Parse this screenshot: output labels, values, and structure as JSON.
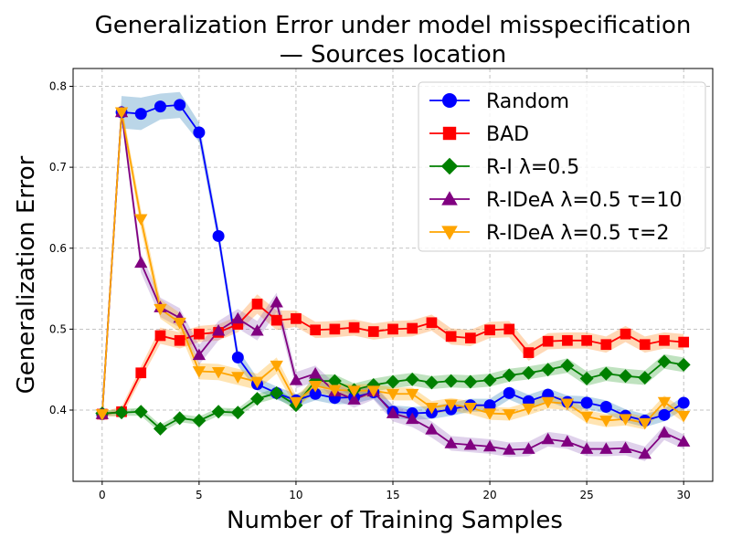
{
  "chart_data": {
    "type": "line",
    "title_line1": "Generalization Error under model misspecification",
    "title_line2": "— Sources location",
    "xlabel": "Number of Training Samples",
    "ylabel": "Generalization Error",
    "xlim": [
      -1.5,
      31.5
    ],
    "ylim": [
      0.312,
      0.822
    ],
    "x_ticks": [
      0,
      5,
      10,
      15,
      20,
      25,
      30
    ],
    "y_ticks": [
      0.4,
      0.5,
      0.6,
      0.7,
      0.8
    ],
    "x_tick_labels": [
      "0",
      "5",
      "10",
      "15",
      "20",
      "25",
      "30"
    ],
    "y_tick_labels": [
      "0.4",
      "0.5",
      "0.6",
      "0.7",
      "0.8"
    ],
    "grid": true,
    "legend_position": "top-right",
    "x": [
      0,
      1,
      2,
      3,
      4,
      5,
      6,
      7,
      8,
      9,
      10,
      11,
      12,
      13,
      14,
      15,
      16,
      17,
      18,
      19,
      20,
      21,
      22,
      23,
      24,
      25,
      26,
      27,
      28,
      29,
      30
    ],
    "series": [
      {
        "name": "Random",
        "color": "#0000ff",
        "band_color": "#1f77b4",
        "marker": "circle",
        "values": [
          0.395,
          0.768,
          0.766,
          0.775,
          0.777,
          0.743,
          0.615,
          0.465,
          0.432,
          0.421,
          0.412,
          0.42,
          0.415,
          0.416,
          0.422,
          0.398,
          0.396,
          0.397,
          0.401,
          0.406,
          0.406,
          0.421,
          0.411,
          0.419,
          0.41,
          0.409,
          0.404,
          0.393,
          0.387,
          0.394,
          0.409
        ],
        "band": [
          0.003,
          0.02,
          0.02,
          0.016,
          0.016,
          0.012,
          0.01,
          0.01,
          0.008,
          0.008,
          0.008,
          0.008,
          0.008,
          0.008,
          0.008,
          0.008,
          0.008,
          0.008,
          0.008,
          0.008,
          0.008,
          0.008,
          0.008,
          0.008,
          0.008,
          0.008,
          0.008,
          0.008,
          0.008,
          0.008,
          0.008
        ]
      },
      {
        "name": "BAD",
        "color": "#ff0000",
        "band_color": "#ff7f0e",
        "marker": "square",
        "values": [
          0.395,
          0.398,
          0.446,
          0.492,
          0.486,
          0.494,
          0.496,
          0.506,
          0.531,
          0.511,
          0.513,
          0.499,
          0.5,
          0.502,
          0.497,
          0.5,
          0.501,
          0.508,
          0.491,
          0.489,
          0.499,
          0.5,
          0.471,
          0.485,
          0.486,
          0.486,
          0.481,
          0.494,
          0.481,
          0.486,
          0.484
        ],
        "band": [
          0.003,
          0.006,
          0.008,
          0.01,
          0.01,
          0.01,
          0.01,
          0.01,
          0.012,
          0.012,
          0.01,
          0.01,
          0.01,
          0.01,
          0.01,
          0.01,
          0.01,
          0.01,
          0.01,
          0.01,
          0.01,
          0.01,
          0.01,
          0.01,
          0.01,
          0.01,
          0.01,
          0.01,
          0.01,
          0.01,
          0.01
        ]
      },
      {
        "name": "R-I λ=0.5",
        "color": "#008000",
        "band_color": "#2ca02c",
        "marker": "diamond",
        "values": [
          0.396,
          0.397,
          0.398,
          0.377,
          0.39,
          0.387,
          0.398,
          0.397,
          0.414,
          0.421,
          0.406,
          0.436,
          0.436,
          0.425,
          0.431,
          0.435,
          0.438,
          0.434,
          0.436,
          0.435,
          0.437,
          0.443,
          0.446,
          0.45,
          0.455,
          0.439,
          0.445,
          0.442,
          0.44,
          0.46,
          0.456
        ],
        "band": [
          0.003,
          0.004,
          0.005,
          0.005,
          0.005,
          0.005,
          0.005,
          0.005,
          0.006,
          0.006,
          0.006,
          0.008,
          0.008,
          0.008,
          0.008,
          0.008,
          0.008,
          0.008,
          0.008,
          0.008,
          0.008,
          0.008,
          0.008,
          0.008,
          0.009,
          0.009,
          0.009,
          0.009,
          0.009,
          0.009,
          0.009
        ]
      },
      {
        "name": "R-IDeA λ=0.5 τ=10",
        "color": "#800080",
        "band_color": "#9467bd",
        "marker": "triangle-up",
        "values": [
          0.395,
          0.768,
          0.582,
          0.527,
          0.514,
          0.468,
          0.498,
          0.513,
          0.498,
          0.533,
          0.437,
          0.445,
          0.423,
          0.413,
          0.423,
          0.396,
          0.389,
          0.376,
          0.359,
          0.357,
          0.355,
          0.351,
          0.352,
          0.364,
          0.361,
          0.352,
          0.352,
          0.353,
          0.346,
          0.372,
          0.361
        ],
        "band": [
          0.003,
          0.01,
          0.012,
          0.012,
          0.012,
          0.012,
          0.012,
          0.012,
          0.012,
          0.012,
          0.01,
          0.01,
          0.01,
          0.01,
          0.01,
          0.01,
          0.01,
          0.01,
          0.009,
          0.009,
          0.009,
          0.009,
          0.009,
          0.009,
          0.009,
          0.009,
          0.009,
          0.009,
          0.009,
          0.009,
          0.009
        ]
      },
      {
        "name": "R-IDeA λ=0.5 τ=2",
        "color": "#ffa500",
        "band_color": "#ffa500",
        "marker": "triangle-down",
        "values": [
          0.395,
          0.768,
          0.636,
          0.525,
          0.508,
          0.448,
          0.447,
          0.441,
          0.435,
          0.455,
          0.41,
          0.43,
          0.425,
          0.424,
          0.424,
          0.42,
          0.42,
          0.403,
          0.407,
          0.403,
          0.396,
          0.395,
          0.402,
          0.41,
          0.408,
          0.392,
          0.387,
          0.389,
          0.384,
          0.41,
          0.393
        ],
        "band": [
          0.003,
          0.01,
          0.012,
          0.012,
          0.012,
          0.01,
          0.01,
          0.01,
          0.01,
          0.01,
          0.008,
          0.008,
          0.008,
          0.008,
          0.008,
          0.008,
          0.008,
          0.008,
          0.008,
          0.008,
          0.008,
          0.008,
          0.008,
          0.008,
          0.008,
          0.008,
          0.008,
          0.008,
          0.008,
          0.008,
          0.008
        ]
      }
    ]
  }
}
